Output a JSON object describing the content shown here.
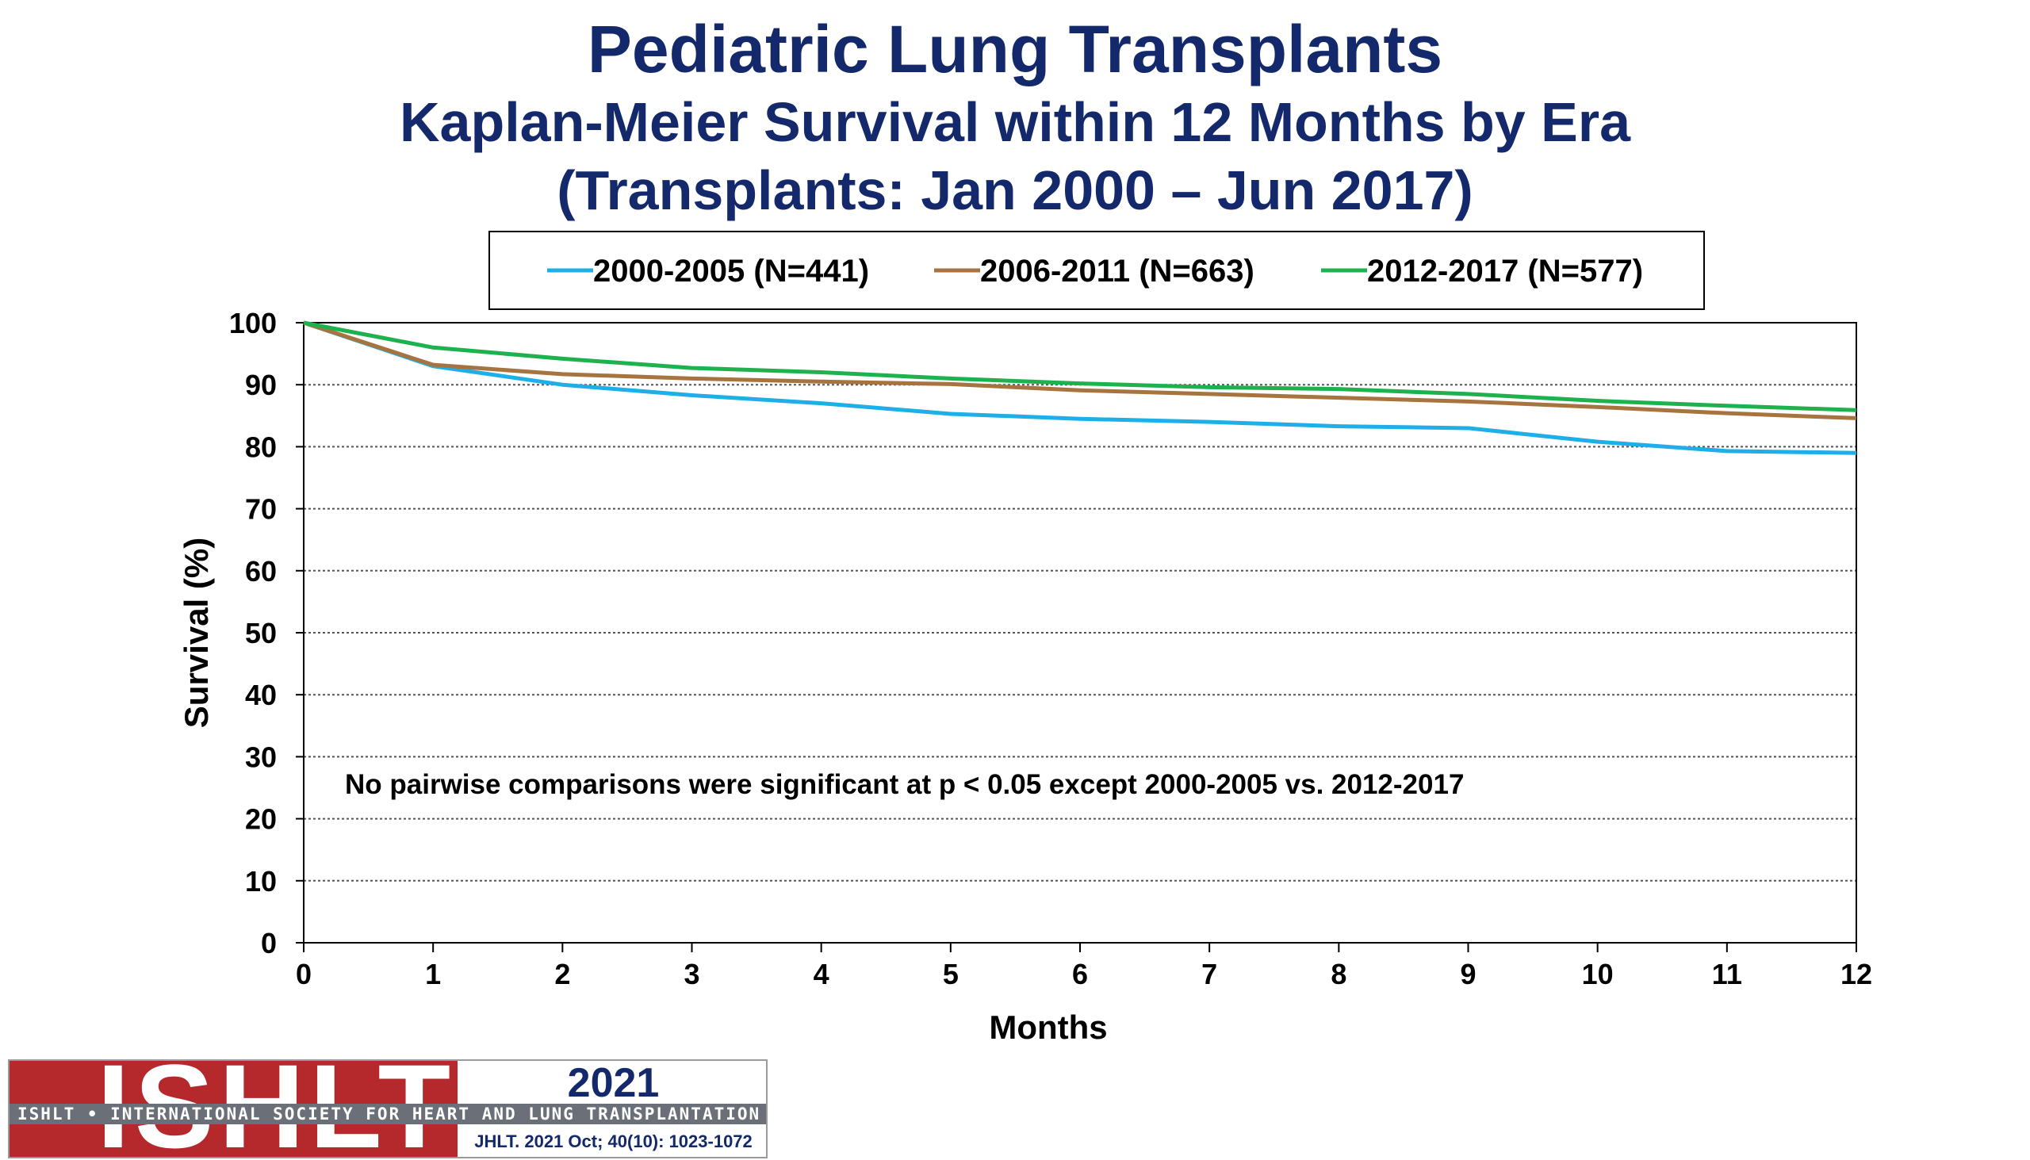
{
  "chart_data": {
    "type": "line",
    "title": "Pediatric Lung Transplants",
    "subtitle": "Kaplan-Meier Survival within 12 Months by Era",
    "subtitle2": "(Transplants: Jan 2000 – Jun 2017)",
    "xlabel": "Months",
    "ylabel": "Survival (%)",
    "xlim": [
      0,
      12
    ],
    "ylim": [
      0,
      100
    ],
    "x_ticks": [
      0,
      1,
      2,
      3,
      4,
      5,
      6,
      7,
      8,
      9,
      10,
      11,
      12
    ],
    "y_ticks": [
      0,
      10,
      20,
      30,
      40,
      50,
      60,
      70,
      80,
      90,
      100
    ],
    "grid": "horizontal dotted",
    "legend_position": "top, boxed",
    "annotation": "No pairwise comparisons were significant at p < 0.05 except 2000-2005 vs. 2012-2017",
    "series": [
      {
        "name": "2000-2005 (N=441)",
        "color": "#1eaee8",
        "x": [
          0,
          1,
          2,
          3,
          4,
          5,
          6,
          7,
          8,
          9,
          10,
          11,
          12
        ],
        "y": [
          100,
          93.0,
          90.0,
          88.3,
          87.0,
          85.3,
          84.5,
          84.0,
          83.3,
          83.0,
          80.8,
          79.3,
          79.0
        ]
      },
      {
        "name": "2006-2011 (N=663)",
        "color": "#a7733e",
        "x": [
          0,
          1,
          2,
          3,
          4,
          5,
          6,
          7,
          8,
          9,
          10,
          11,
          12
        ],
        "y": [
          100,
          93.2,
          91.7,
          91.0,
          90.5,
          90.1,
          89.1,
          88.5,
          87.9,
          87.3,
          86.4,
          85.4,
          84.6
        ]
      },
      {
        "name": "2012-2017 (N=577)",
        "color": "#1db24e",
        "x": [
          0,
          1,
          2,
          3,
          4,
          5,
          6,
          7,
          8,
          9,
          10,
          11,
          12
        ],
        "y": [
          100,
          96.0,
          94.2,
          92.7,
          92.0,
          91.0,
          90.2,
          89.6,
          89.3,
          88.5,
          87.4,
          86.6,
          85.9
        ]
      }
    ]
  },
  "logo": {
    "text": "ISHLT",
    "band_text": "ISHLT • INTERNATIONAL SOCIETY FOR HEART AND LUNG TRANSPLANTATION",
    "year": "2021",
    "citation": "JHLT. 2021 Oct; 40(10): 1023-1072"
  }
}
